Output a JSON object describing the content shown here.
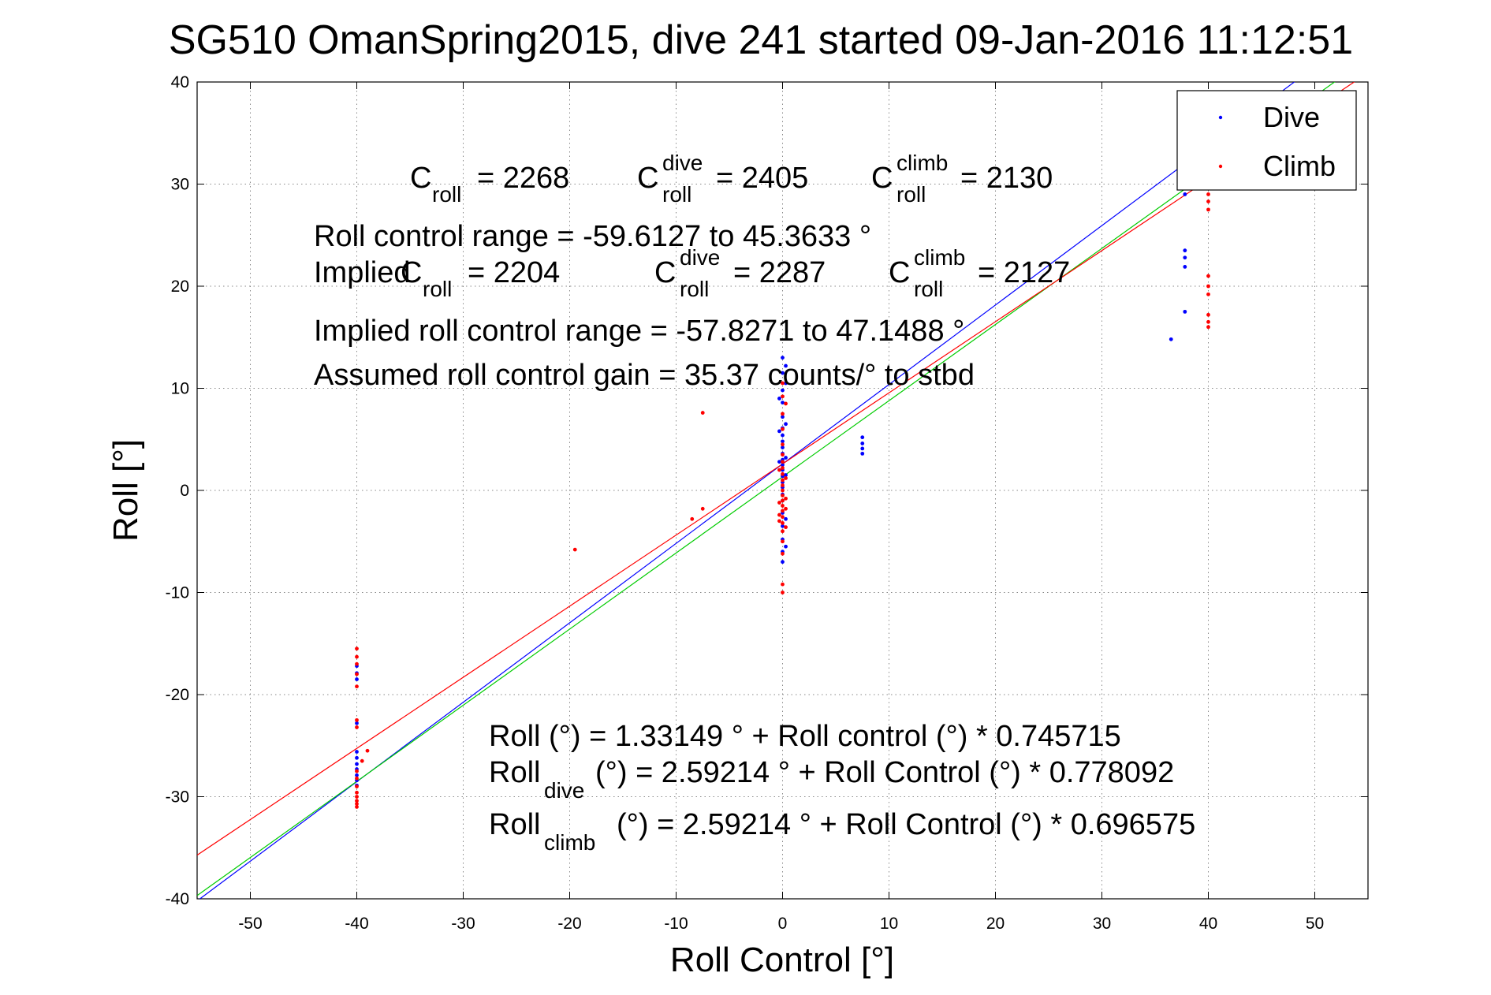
{
  "chart_data": {
    "type": "scatter",
    "title": "SG510 OmanSpring2015, dive 241 started 09-Jan-2016 11:12:51",
    "xlabel": "Roll Control [°]",
    "ylabel": "Roll [°]",
    "xlim": [
      -55,
      55
    ],
    "ylim": [
      -40,
      40
    ],
    "xticks": [
      -50,
      -40,
      -30,
      -20,
      -10,
      0,
      10,
      20,
      30,
      40,
      50
    ],
    "yticks": [
      -40,
      -30,
      -20,
      -10,
      0,
      10,
      20,
      30,
      40
    ],
    "grid": true,
    "legend": {
      "position": "top-right",
      "entries": [
        "Dive",
        "Climb"
      ]
    },
    "colors": {
      "dive": "#0000ff",
      "climb": "#ff0000",
      "overall_fit": "#00cc00"
    },
    "series": [
      {
        "name": "Dive",
        "color": "#0000ff",
        "points": [
          [
            -40,
            -17.2
          ],
          [
            -40,
            -17.9
          ],
          [
            -40,
            -18.5
          ],
          [
            -40,
            -22.8
          ],
          [
            -40,
            -25.6
          ],
          [
            -40,
            -26.2
          ],
          [
            -40,
            -26.8
          ],
          [
            -40,
            -27.3
          ],
          [
            -40,
            -27.9
          ],
          [
            -40,
            -28.4
          ],
          [
            -40,
            -28.9
          ],
          [
            0,
            13.0
          ],
          [
            0,
            11.5
          ],
          [
            0,
            9.8
          ],
          [
            0,
            8.6
          ],
          [
            0,
            7.2
          ],
          [
            0,
            6.1
          ],
          [
            0,
            5.4
          ],
          [
            0,
            4.8
          ],
          [
            0,
            4.2
          ],
          [
            0,
            3.6
          ],
          [
            0,
            3.0
          ],
          [
            0,
            2.5
          ],
          [
            0,
            2.0
          ],
          [
            0,
            1.4
          ],
          [
            0,
            0.8
          ],
          [
            0,
            0.3
          ],
          [
            0,
            -0.4
          ],
          [
            0,
            -1.0
          ],
          [
            0,
            -2.2
          ],
          [
            0,
            -3.5
          ],
          [
            0,
            -4.8
          ],
          [
            0,
            -6.0
          ],
          [
            0,
            -7.0
          ],
          [
            0.3,
            12.2
          ],
          [
            0.3,
            10.5
          ],
          [
            0.3,
            6.5
          ],
          [
            0.3,
            3.2
          ],
          [
            0.3,
            1.5
          ],
          [
            0.3,
            -2.8
          ],
          [
            0.3,
            -5.5
          ],
          [
            -0.3,
            9.0
          ],
          [
            -0.3,
            5.8
          ],
          [
            -0.3,
            2.8
          ],
          [
            7.5,
            5.2
          ],
          [
            7.5,
            4.6
          ],
          [
            7.5,
            4.1
          ],
          [
            7.5,
            3.6
          ],
          [
            37.8,
            29.0
          ],
          [
            37.8,
            23.5
          ],
          [
            37.8,
            22.8
          ],
          [
            37.8,
            21.9
          ],
          [
            37.8,
            17.5
          ],
          [
            36.5,
            14.8
          ]
        ]
      },
      {
        "name": "Climb",
        "color": "#ff0000",
        "points": [
          [
            -40,
            -15.5
          ],
          [
            -40,
            -16.3
          ],
          [
            -40,
            -17.0
          ],
          [
            -40,
            -18.0
          ],
          [
            -40,
            -19.2
          ],
          [
            -40,
            -22.5
          ],
          [
            -40,
            -23.2
          ],
          [
            -40,
            -27.5
          ],
          [
            -40,
            -28.2
          ],
          [
            -40,
            -29.0
          ],
          [
            -40,
            -29.6
          ],
          [
            -40,
            -30.0
          ],
          [
            -40,
            -30.4
          ],
          [
            -40,
            -30.7
          ],
          [
            -40,
            -31.0
          ],
          [
            -39.5,
            -26.5
          ],
          [
            -39.0,
            -25.5
          ],
          [
            -19.5,
            -5.8
          ],
          [
            -8.5,
            -2.8
          ],
          [
            -7.5,
            -1.8
          ],
          [
            -7.5,
            7.6
          ],
          [
            0,
            10.5
          ],
          [
            0,
            9.2
          ],
          [
            0,
            7.5
          ],
          [
            0,
            6.0
          ],
          [
            0,
            4.5
          ],
          [
            0,
            3.5
          ],
          [
            0,
            2.8
          ],
          [
            0,
            2.2
          ],
          [
            0,
            1.6
          ],
          [
            0,
            1.0
          ],
          [
            0,
            0.5
          ],
          [
            0,
            0.0
          ],
          [
            0,
            -0.5
          ],
          [
            0,
            -1.0
          ],
          [
            0,
            -1.5
          ],
          [
            0,
            -2.0
          ],
          [
            0,
            -2.6
          ],
          [
            0,
            -3.2
          ],
          [
            0,
            -4.0
          ],
          [
            0,
            -5.0
          ],
          [
            0,
            -6.2
          ],
          [
            0,
            -9.2
          ],
          [
            0,
            -10.0
          ],
          [
            0.3,
            8.5
          ],
          [
            0.3,
            1.2
          ],
          [
            0.3,
            -0.8
          ],
          [
            0.3,
            -1.8
          ],
          [
            0.3,
            -3.6
          ],
          [
            -0.3,
            2.0
          ],
          [
            -0.3,
            -1.2
          ],
          [
            -0.3,
            -2.4
          ],
          [
            -0.3,
            -3.0
          ],
          [
            40,
            29.0
          ],
          [
            40,
            28.3
          ],
          [
            40,
            27.5
          ],
          [
            40,
            21.0
          ],
          [
            40,
            20.0
          ],
          [
            40,
            19.2
          ],
          [
            40,
            17.2
          ],
          [
            40,
            16.5
          ],
          [
            40,
            16.0
          ]
        ]
      }
    ],
    "fit_lines": [
      {
        "label": "Roll_dive",
        "color": "#0000ff",
        "intercept": 2.59214,
        "slope": 0.778092
      },
      {
        "label": "Roll",
        "color": "#00cc00",
        "intercept": 1.33149,
        "slope": 0.745715
      },
      {
        "label": "Roll_climb",
        "color": "#ff0000",
        "intercept": 2.59214,
        "slope": 0.696575
      }
    ],
    "annotations": {
      "c_symbol": "C",
      "roll_sub": "roll",
      "dive_sup": "dive",
      "climb_sup": "climb",
      "c_roll_value": "= 2268",
      "c_dive_value": "= 2405",
      "c_climb_value": "= 2130",
      "range_line": "Roll control range = -59.6127 to 45.3633 °",
      "implied_prefix": "Implied",
      "implied_c_value": "= 2204",
      "implied_dive_value": "= 2287",
      "implied_climb_value": "= 2127",
      "implied_range_line": "Implied roll control range = -57.8271 to 47.1488 °",
      "gain_line": "Assumed roll control gain = 35.37 counts/° to stbd",
      "fit_line_1": "Roll (°) = 1.33149 ° + Roll control (°) * 0.745715",
      "roll_word": "Roll",
      "dive_sub": "dive",
      "climb_sub": "climb",
      "fit_line_2_rest": "(°) = 2.59214 ° + Roll Control (°) * 0.778092",
      "fit_line_3_rest": "(°) = 2.59214 ° + Roll Control (°) * 0.696575"
    }
  }
}
